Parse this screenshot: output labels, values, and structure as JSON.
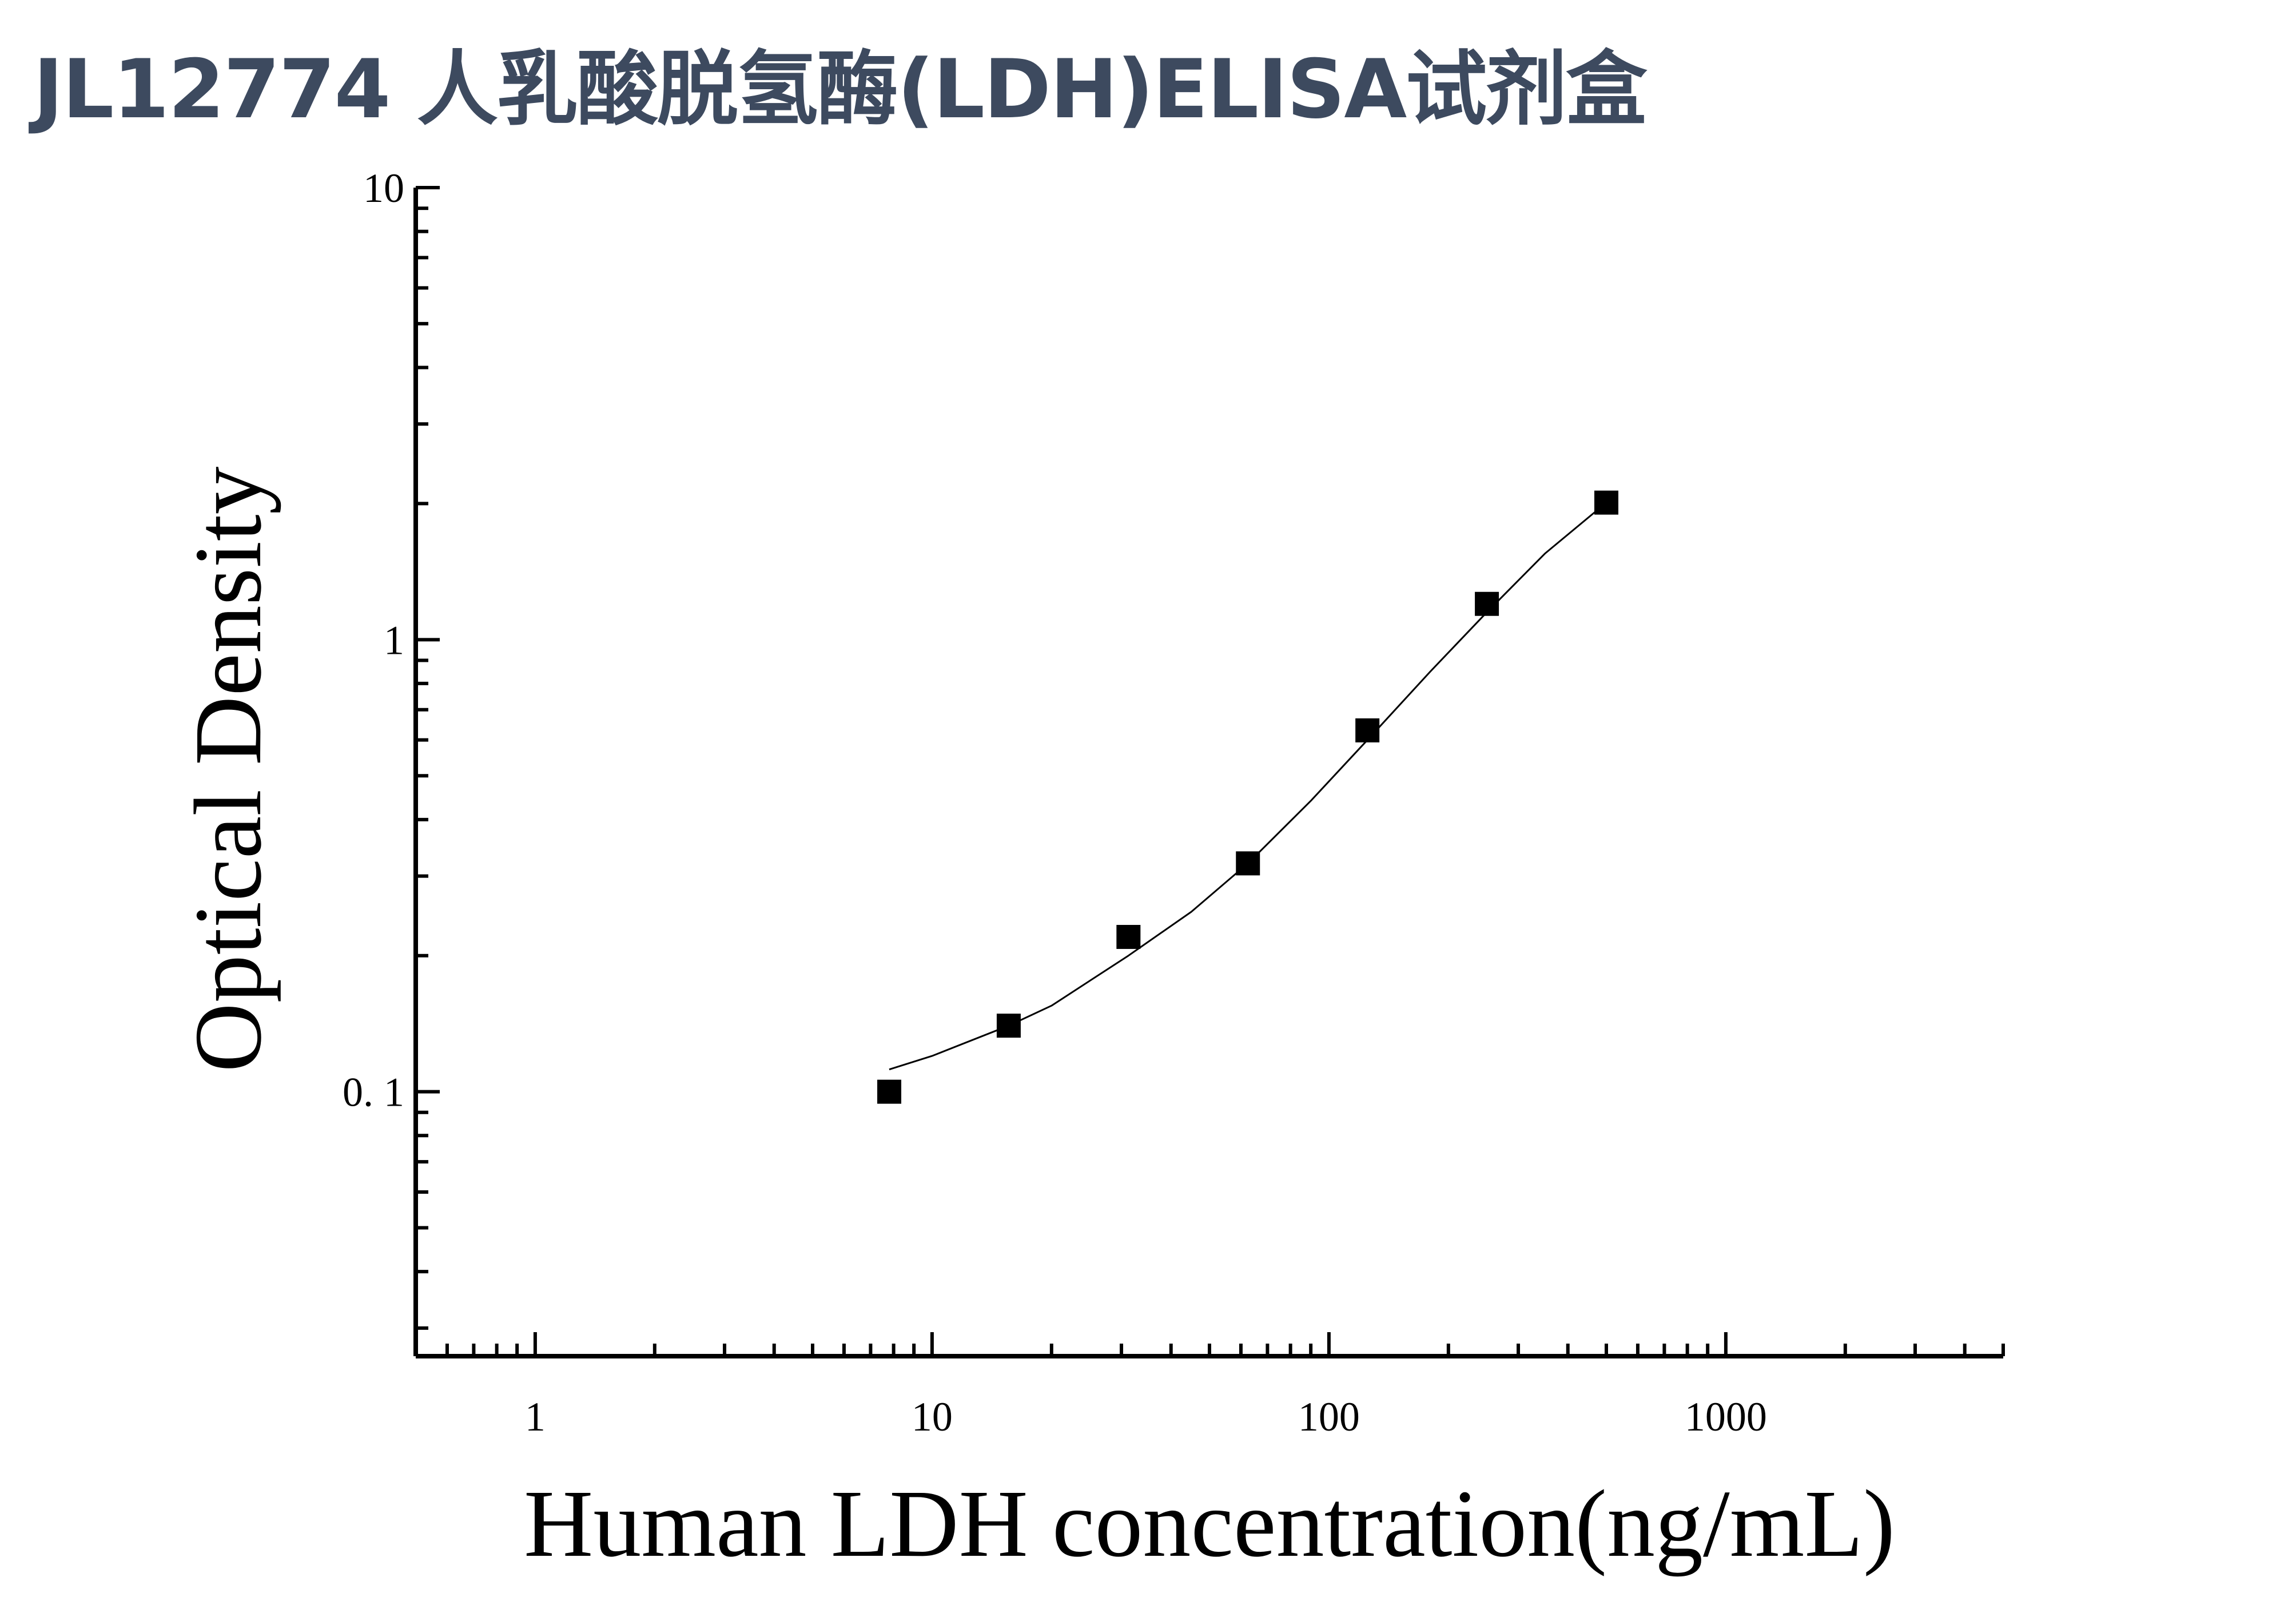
{
  "title": "JL12774 人乳酸脱氢酶(LDH)ELISA试剂盒",
  "chart_data": {
    "type": "scatter",
    "xscale": "log",
    "yscale": "log",
    "xlabel": "Human LDH concentration(ng/mL)",
    "ylabel": "Optical Density",
    "xlim": [
      0.5,
      5000
    ],
    "ylim": [
      0.026,
      10
    ],
    "x_ticks": [
      1,
      10,
      100,
      1000
    ],
    "x_tick_labels": [
      "1",
      "10",
      "100",
      "1000"
    ],
    "y_ticks": [
      0.1,
      1,
      10
    ],
    "y_tick_labels": [
      "0. 1",
      "1",
      "10"
    ],
    "grid": false,
    "series": [
      {
        "marker": "square",
        "color": "#000000",
        "x": [
          7.8,
          15.6,
          31.25,
          62.5,
          125,
          250,
          500
        ],
        "y": [
          0.1,
          0.14,
          0.22,
          0.32,
          0.63,
          1.2,
          2.01
        ]
      }
    ],
    "fit": {
      "type": "line",
      "color": "#000000",
      "x": [
        7.8,
        10,
        15.6,
        20,
        31.25,
        45,
        62.5,
        90,
        125,
        180,
        250,
        350,
        500
      ],
      "y": [
        0.112,
        0.12,
        0.14,
        0.155,
        0.2,
        0.25,
        0.32,
        0.44,
        0.6,
        0.85,
        1.15,
        1.55,
        2.01
      ]
    }
  }
}
